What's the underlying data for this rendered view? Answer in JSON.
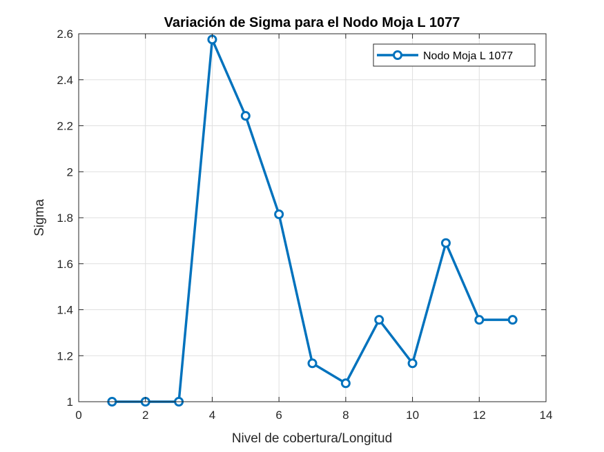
{
  "chart_data": {
    "type": "line",
    "title": "Variación de Sigma para el Nodo Moja L 1077",
    "xlabel": "Nivel de cobertura/Longitud",
    "ylabel": "Sigma",
    "xlim": [
      0,
      14
    ],
    "ylim": [
      1,
      2.6
    ],
    "xticks": [
      0,
      2,
      4,
      6,
      8,
      10,
      12,
      14
    ],
    "yticks": [
      1,
      1.2,
      1.4,
      1.6,
      1.8,
      2,
      2.2,
      2.4,
      2.6
    ],
    "xtick_labels": [
      "0",
      "2",
      "4",
      "6",
      "8",
      "10",
      "12",
      "14"
    ],
    "ytick_labels": [
      "1",
      "1.2",
      "1.4",
      "1.6",
      "1.8",
      "2",
      "2.2",
      "2.4",
      "2.6"
    ],
    "grid": true,
    "legend_position": "top-right",
    "series": [
      {
        "name": "Nodo Moja L 1077",
        "color": "#0072BD",
        "marker": "circle",
        "x": [
          1,
          2,
          3,
          4,
          5,
          6,
          7,
          8,
          9,
          10,
          11,
          12,
          13
        ],
        "values": [
          1.0,
          1.0,
          1.0,
          2.575,
          2.243,
          1.815,
          1.167,
          1.08,
          1.356,
          1.167,
          1.69,
          1.356,
          1.356
        ]
      }
    ]
  }
}
